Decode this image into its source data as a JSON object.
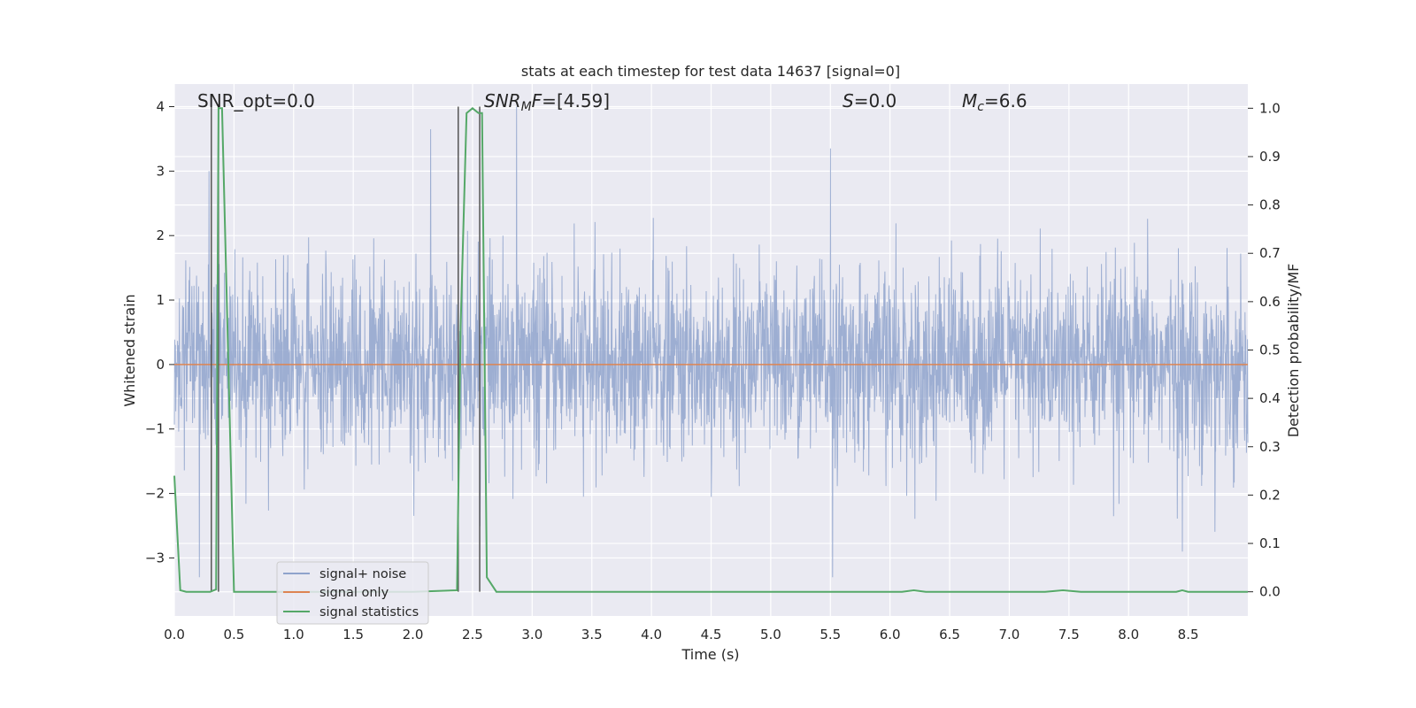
{
  "chart_data": {
    "type": "line",
    "title": "stats at each timestep for test data 14637 [signal=0]",
    "xlabel": "Time (s)",
    "ylabel": "Whitened strain",
    "y2label": "Detection probability/MF",
    "xlim": [
      0,
      9
    ],
    "ylim": [
      -3.9,
      4.35
    ],
    "y2lim": [
      -0.05,
      1.05
    ],
    "xticks": [
      "0.0",
      "0.5",
      "1.0",
      "1.5",
      "2.0",
      "2.5",
      "3.0",
      "3.5",
      "4.0",
      "4.5",
      "5.0",
      "5.5",
      "6.0",
      "6.5",
      "7.0",
      "7.5",
      "8.0",
      "8.5"
    ],
    "yticks": [
      "−3",
      "−2",
      "−1",
      "0",
      "1",
      "2",
      "3",
      "4"
    ],
    "y2ticks": [
      "0.0",
      "0.1",
      "0.2",
      "0.3",
      "0.4",
      "0.5",
      "0.6",
      "0.7",
      "0.8",
      "0.9",
      "1.0"
    ],
    "grid": true,
    "legend_position": "lower-left",
    "series": [
      {
        "name": "signal+ noise",
        "color": "#8fa3cc",
        "description": "whitened noise time series, amplitude roughly within ±3, sampled densely over 0–9 s",
        "peaks": [
          [
            0.29,
            3.0
          ],
          [
            2.15,
            3.65
          ],
          [
            2.87,
            4.0
          ],
          [
            5.5,
            3.35
          ],
          [
            5.52,
            -3.3
          ],
          [
            0.21,
            -3.3
          ],
          [
            8.45,
            -2.9
          ]
        ]
      },
      {
        "name": "signal only",
        "color": "#dd8452",
        "x": [
          0,
          9
        ],
        "y": [
          0,
          0
        ]
      },
      {
        "name": "signal statistics",
        "color": "#55a868",
        "axis": "right",
        "x": [
          0.0,
          0.05,
          0.1,
          0.2,
          0.3,
          0.35,
          0.37,
          0.4,
          0.5,
          1.0,
          1.5,
          2.0,
          2.37,
          2.4,
          2.45,
          2.5,
          2.55,
          2.58,
          2.62,
          2.7,
          3.0,
          5.5,
          6.1,
          6.2,
          6.3,
          7.3,
          7.45,
          7.6,
          8.4,
          8.45,
          8.5,
          9.0
        ],
        "y": [
          0.24,
          0.003,
          0.0,
          0.0,
          0.0,
          0.005,
          1.0,
          1.0,
          0.0,
          0.0,
          0.0,
          0.0,
          0.003,
          0.55,
          0.99,
          1.0,
          0.99,
          0.99,
          0.03,
          0.0,
          0.0,
          0.0,
          0.0,
          0.003,
          0.0,
          0.0,
          0.003,
          0.0,
          0.0,
          0.003,
          0.0,
          0.0
        ]
      }
    ],
    "vlines_x": [
      0.31,
      0.37,
      2.38,
      2.56
    ],
    "annotations": {
      "snr_opt": "SNR_opt=0.0",
      "snr_mf": "[4.59]",
      "s_val": "0.0",
      "mc_val": "6.6"
    }
  }
}
